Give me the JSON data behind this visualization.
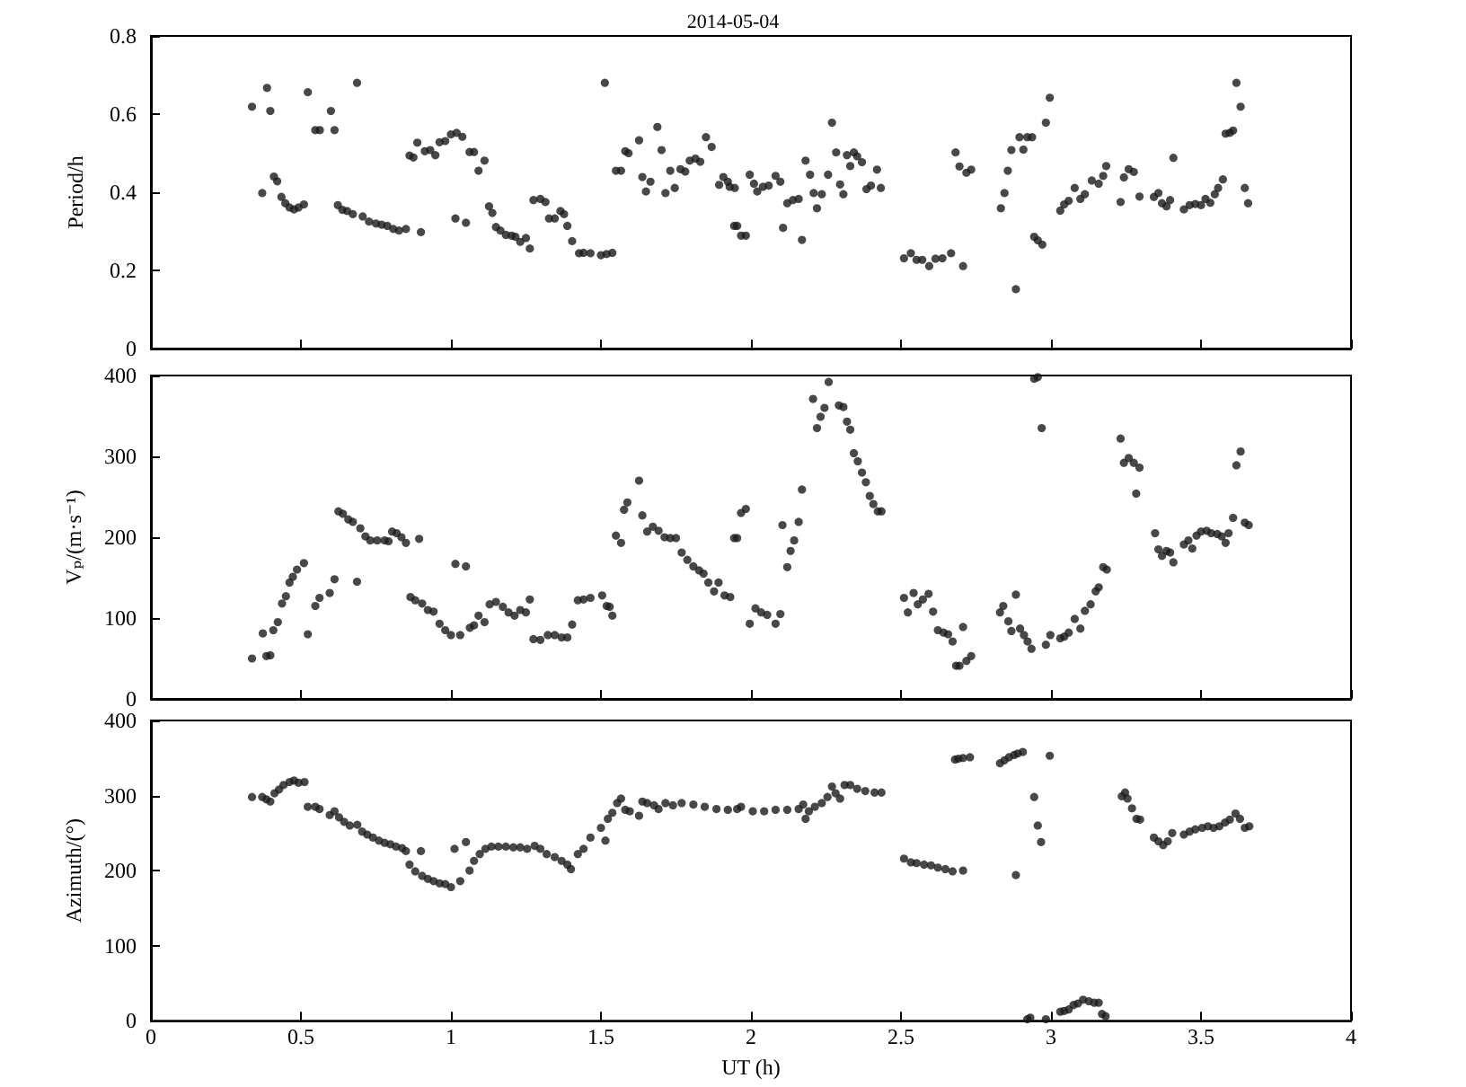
{
  "chart_data": [
    {
      "type": "scatter",
      "title": "2014-05-04",
      "ylabel": "Period/h",
      "color": "#1a1a1a",
      "marker": "circle",
      "grid": false,
      "tick_labels": "y",
      "xlim": [
        0,
        4
      ],
      "xticks": [
        0,
        0.5,
        1,
        1.5,
        2,
        2.5,
        3,
        3.5,
        4
      ],
      "ylim": [
        0,
        0.8
      ],
      "yticks": [
        0,
        0.2,
        0.4,
        0.6,
        0.8
      ],
      "x": [
        0.337,
        0.371,
        0.387,
        0.398,
        0.41,
        0.421,
        0.435,
        0.448,
        0.462,
        0.477,
        0.492,
        0.51,
        0.523,
        0.548,
        0.563,
        0.6,
        0.612,
        0.623,
        0.638,
        0.654,
        0.673,
        0.687,
        0.706,
        0.727,
        0.75,
        0.769,
        0.788,
        0.808,
        0.827,
        0.85,
        0.862,
        0.875,
        0.888,
        0.9,
        0.913,
        0.931,
        0.948,
        0.962,
        0.981,
        1.0,
        1.019,
        1.038,
        1.015,
        1.05,
        1.062,
        1.077,
        1.092,
        1.112,
        1.127,
        1.138,
        1.15,
        1.165,
        1.183,
        1.202,
        1.215,
        1.231,
        1.25,
        1.263,
        1.275,
        1.298,
        1.315,
        1.327,
        1.346,
        1.365,
        1.377,
        1.388,
        1.404,
        1.427,
        1.442,
        1.465,
        1.5,
        1.513,
        1.519,
        1.538,
        1.55,
        1.567,
        1.581,
        1.592,
        1.627,
        1.638,
        1.65,
        1.665,
        1.688,
        1.702,
        1.715,
        1.731,
        1.746,
        1.765,
        1.781,
        1.796,
        1.815,
        1.831,
        1.85,
        1.869,
        1.894,
        1.908,
        1.923,
        1.946,
        1.954,
        1.929,
        1.944,
        1.967,
        1.983,
        1.996,
        2.01,
        2.021,
        2.04,
        2.059,
        2.082,
        2.098,
        2.107,
        2.121,
        2.14,
        2.159,
        2.17,
        2.182,
        2.197,
        2.209,
        2.22,
        2.236,
        2.257,
        2.27,
        2.284,
        2.297,
        2.308,
        2.32,
        2.331,
        2.343,
        2.354,
        2.37,
        2.385,
        2.4,
        2.42,
        2.433,
        2.51,
        2.533,
        2.552,
        2.571,
        2.594,
        2.615,
        2.638,
        2.667,
        2.682,
        2.695,
        2.707,
        2.718,
        2.734,
        2.833,
        2.845,
        2.856,
        2.868,
        2.883,
        2.895,
        2.908,
        2.921,
        2.937,
        2.944,
        2.956,
        2.971,
        2.983,
        2.996,
        3.031,
        3.044,
        3.059,
        3.079,
        3.098,
        3.113,
        3.136,
        3.159,
        3.174,
        3.184,
        3.232,
        3.243,
        3.259,
        3.276,
        3.295,
        3.343,
        3.358,
        3.37,
        3.385,
        3.397,
        3.408,
        3.443,
        3.462,
        3.481,
        3.5,
        3.515,
        3.531,
        3.546,
        3.557,
        3.573,
        3.582,
        3.596,
        3.607,
        3.618,
        3.632,
        3.646,
        3.657
      ],
      "values": [
        0.619,
        0.398,
        0.667,
        0.608,
        0.44,
        0.428,
        0.388,
        0.372,
        0.361,
        0.356,
        0.361,
        0.369,
        0.656,
        0.559,
        0.559,
        0.608,
        0.559,
        0.367,
        0.355,
        0.352,
        0.344,
        0.68,
        0.338,
        0.325,
        0.32,
        0.317,
        0.314,
        0.306,
        0.302,
        0.306,
        0.494,
        0.489,
        0.527,
        0.298,
        0.505,
        0.508,
        0.495,
        0.528,
        0.531,
        0.548,
        0.552,
        0.542,
        0.333,
        0.322,
        0.503,
        0.503,
        0.455,
        0.481,
        0.364,
        0.347,
        0.311,
        0.302,
        0.291,
        0.289,
        0.286,
        0.273,
        0.283,
        0.256,
        0.38,
        0.383,
        0.375,
        0.333,
        0.333,
        0.352,
        0.344,
        0.314,
        0.275,
        0.244,
        0.245,
        0.244,
        0.239,
        0.68,
        0.242,
        0.245,
        0.455,
        0.455,
        0.505,
        0.5,
        0.533,
        0.439,
        0.402,
        0.427,
        0.567,
        0.508,
        0.398,
        0.455,
        0.411,
        0.459,
        0.453,
        0.481,
        0.486,
        0.478,
        0.541,
        0.516,
        0.419,
        0.439,
        0.427,
        0.411,
        0.314,
        0.414,
        0.314,
        0.289,
        0.289,
        0.445,
        0.422,
        0.402,
        0.414,
        0.417,
        0.442,
        0.427,
        0.309,
        0.372,
        0.38,
        0.383,
        0.278,
        0.481,
        0.445,
        0.398,
        0.359,
        0.395,
        0.445,
        0.578,
        0.502,
        0.42,
        0.395,
        0.495,
        0.467,
        0.502,
        0.492,
        0.477,
        0.408,
        0.417,
        0.458,
        0.411,
        0.231,
        0.244,
        0.227,
        0.227,
        0.211,
        0.23,
        0.231,
        0.244,
        0.502,
        0.466,
        0.211,
        0.45,
        0.458,
        0.359,
        0.398,
        0.455,
        0.508,
        0.152,
        0.541,
        0.509,
        0.541,
        0.541,
        0.286,
        0.277,
        0.266,
        0.578,
        0.642,
        0.353,
        0.369,
        0.378,
        0.411,
        0.383,
        0.395,
        0.43,
        0.422,
        0.442,
        0.467,
        0.375,
        0.438,
        0.459,
        0.452,
        0.389,
        0.388,
        0.398,
        0.372,
        0.364,
        0.38,
        0.488,
        0.356,
        0.367,
        0.37,
        0.367,
        0.383,
        0.373,
        0.395,
        0.411,
        0.433,
        0.55,
        0.552,
        0.558,
        0.68,
        0.619,
        0.411,
        0.372
      ]
    },
    {
      "type": "scatter",
      "ylabel": "Vₚ/(m·s⁻¹)",
      "color": "#1a1a1a",
      "marker": "circle",
      "grid": false,
      "tick_labels": "y",
      "xlim": [
        0,
        4
      ],
      "xticks": [
        0,
        0.5,
        1,
        1.5,
        2,
        2.5,
        3,
        3.5,
        4
      ],
      "ylim": [
        0,
        400
      ],
      "yticks": [
        0,
        100,
        200,
        300,
        400
      ],
      "x": [
        0.337,
        0.373,
        0.385,
        0.398,
        0.408,
        0.423,
        0.437,
        0.45,
        0.462,
        0.473,
        0.487,
        0.51,
        0.523,
        0.548,
        0.562,
        0.596,
        0.612,
        0.625,
        0.64,
        0.658,
        0.673,
        0.687,
        0.698,
        0.715,
        0.731,
        0.754,
        0.779,
        0.792,
        0.804,
        0.819,
        0.835,
        0.85,
        0.865,
        0.881,
        0.894,
        0.904,
        0.923,
        0.942,
        0.962,
        0.981,
        1.0,
        1.015,
        1.031,
        1.05,
        1.063,
        1.077,
        1.092,
        1.112,
        1.129,
        1.15,
        1.173,
        1.192,
        1.212,
        1.231,
        1.25,
        1.263,
        1.275,
        1.298,
        1.323,
        1.346,
        1.369,
        1.388,
        1.404,
        1.423,
        1.442,
        1.465,
        1.504,
        1.519,
        1.529,
        1.538,
        1.55,
        1.567,
        1.577,
        1.588,
        1.627,
        1.638,
        1.654,
        1.673,
        1.692,
        1.712,
        1.731,
        1.75,
        1.769,
        1.788,
        1.808,
        1.827,
        1.842,
        1.858,
        1.877,
        1.892,
        1.912,
        1.931,
        1.954,
        1.944,
        1.967,
        1.983,
        1.996,
        2.015,
        2.034,
        2.054,
        2.082,
        2.098,
        2.105,
        2.121,
        2.132,
        2.144,
        2.159,
        2.17,
        2.207,
        2.22,
        2.232,
        2.245,
        2.259,
        2.293,
        2.308,
        2.32,
        2.331,
        2.343,
        2.356,
        2.37,
        2.383,
        2.396,
        2.408,
        2.423,
        2.435,
        2.51,
        2.523,
        2.542,
        2.556,
        2.573,
        2.592,
        2.607,
        2.623,
        2.642,
        2.657,
        2.672,
        2.684,
        2.695,
        2.707,
        2.718,
        2.734,
        2.83,
        2.841,
        2.858,
        2.868,
        2.883,
        2.897,
        2.91,
        2.922,
        2.935,
        2.944,
        2.956,
        2.969,
        2.983,
        2.998,
        3.031,
        3.044,
        3.059,
        3.079,
        3.098,
        3.113,
        3.132,
        3.149,
        3.159,
        3.174,
        3.186,
        3.232,
        3.243,
        3.259,
        3.276,
        3.284,
        3.295,
        3.347,
        3.358,
        3.37,
        3.385,
        3.397,
        3.408,
        3.443,
        3.458,
        3.471,
        3.485,
        3.5,
        3.519,
        3.534,
        3.554,
        3.569,
        3.582,
        3.592,
        3.607,
        3.618,
        3.632,
        3.646,
        3.659
      ],
      "values": [
        50,
        81,
        53,
        54,
        85,
        95,
        118,
        127,
        144,
        151,
        160,
        168,
        80,
        115,
        125,
        131,
        148,
        232,
        229,
        222,
        219,
        145,
        211,
        201,
        196,
        196,
        196,
        195,
        207,
        205,
        200,
        193,
        126,
        122,
        198,
        118,
        110,
        108,
        93,
        85,
        79,
        167,
        79,
        164,
        88,
        91,
        103,
        95,
        117,
        120,
        114,
        107,
        103,
        110,
        107,
        123,
        74,
        73,
        79,
        79,
        76,
        76,
        92,
        122,
        123,
        125,
        128,
        115,
        114,
        103,
        202,
        193,
        234,
        243,
        270,
        227,
        207,
        213,
        208,
        200,
        199,
        199,
        181,
        172,
        164,
        159,
        155,
        144,
        133,
        144,
        128,
        126,
        199,
        199,
        230,
        235,
        93,
        112,
        107,
        104,
        93,
        105,
        215,
        163,
        183,
        196,
        219,
        259,
        371,
        335,
        349,
        360,
        392,
        363,
        361,
        343,
        333,
        304,
        294,
        280,
        268,
        251,
        241,
        232,
        232,
        125,
        107,
        131,
        117,
        123,
        130,
        108,
        85,
        82,
        80,
        71,
        41,
        41,
        89,
        47,
        53,
        107,
        115,
        96,
        84,
        129,
        87,
        79,
        71,
        62,
        396,
        398,
        335,
        67,
        79,
        75,
        77,
        82,
        99,
        87,
        109,
        117,
        133,
        138,
        163,
        160,
        322,
        292,
        298,
        292,
        254,
        286,
        205,
        185,
        177,
        183,
        181,
        169,
        191,
        196,
        186,
        202,
        207,
        208,
        205,
        204,
        201,
        193,
        205,
        224,
        289,
        306,
        218,
        215
      ]
    },
    {
      "type": "scatter",
      "xlabel": "UT (h)",
      "ylabel": "Azimuth/(°)",
      "color": "#1a1a1a",
      "marker": "circle",
      "grid": false,
      "xlim": [
        0,
        4
      ],
      "xticks": [
        0,
        0.5,
        1,
        1.5,
        2,
        2.5,
        3,
        3.5,
        4
      ],
      "ylim": [
        0,
        400
      ],
      "yticks": [
        0,
        100,
        200,
        300,
        400
      ],
      "x": [
        0.337,
        0.371,
        0.385,
        0.398,
        0.412,
        0.427,
        0.442,
        0.462,
        0.477,
        0.492,
        0.512,
        0.523,
        0.548,
        0.562,
        0.596,
        0.612,
        0.627,
        0.644,
        0.663,
        0.688,
        0.704,
        0.721,
        0.74,
        0.76,
        0.779,
        0.798,
        0.817,
        0.837,
        0.85,
        0.862,
        0.881,
        0.9,
        0.904,
        0.923,
        0.942,
        0.962,
        0.981,
        1.0,
        1.012,
        1.031,
        1.05,
        1.062,
        1.077,
        1.096,
        1.115,
        1.135,
        1.158,
        1.183,
        1.208,
        1.231,
        1.254,
        1.279,
        1.298,
        1.319,
        1.346,
        1.369,
        1.388,
        1.4,
        1.423,
        1.442,
        1.465,
        1.5,
        1.515,
        1.523,
        1.538,
        1.554,
        1.567,
        1.581,
        1.596,
        1.627,
        1.638,
        1.654,
        1.677,
        1.692,
        1.715,
        1.74,
        1.769,
        1.808,
        1.846,
        1.885,
        1.923,
        1.954,
        1.967,
        2.006,
        2.044,
        2.082,
        2.121,
        2.159,
        2.174,
        2.182,
        2.193,
        2.213,
        2.236,
        2.255,
        2.27,
        2.282,
        2.297,
        2.312,
        2.331,
        2.354,
        2.381,
        2.412,
        2.435,
        2.51,
        2.533,
        2.552,
        2.577,
        2.6,
        2.623,
        2.648,
        2.672,
        2.707,
        2.68,
        2.691,
        2.707,
        2.73,
        2.83,
        2.845,
        2.86,
        2.877,
        2.889,
        2.906,
        2.883,
        2.921,
        2.931,
        2.944,
        2.956,
        2.967,
        2.983,
        2.996,
        3.031,
        3.044,
        3.059,
        3.075,
        3.09,
        3.107,
        3.126,
        3.144,
        3.159,
        3.17,
        3.182,
        3.236,
        3.247,
        3.255,
        3.27,
        3.285,
        3.297,
        3.343,
        3.358,
        3.374,
        3.389,
        3.404,
        3.443,
        3.462,
        3.481,
        3.504,
        3.523,
        3.542,
        3.561,
        3.58,
        3.596,
        3.615,
        3.63,
        3.646,
        3.661
      ],
      "values": [
        298,
        298,
        295,
        292,
        303,
        308,
        314,
        318,
        320,
        317,
        318,
        285,
        285,
        282,
        274,
        279,
        271,
        265,
        260,
        261,
        252,
        248,
        244,
        240,
        237,
        235,
        232,
        230,
        226,
        208,
        199,
        226,
        193,
        189,
        186,
        183,
        182,
        178,
        229,
        186,
        238,
        200,
        213,
        222,
        229,
        232,
        232,
        232,
        231,
        231,
        229,
        233,
        229,
        222,
        218,
        213,
        208,
        202,
        222,
        229,
        244,
        257,
        240,
        269,
        277,
        290,
        296,
        281,
        279,
        273,
        292,
        290,
        287,
        282,
        290,
        287,
        290,
        288,
        285,
        282,
        281,
        282,
        285,
        279,
        279,
        281,
        281,
        282,
        288,
        269,
        279,
        285,
        290,
        298,
        312,
        303,
        296,
        314,
        314,
        309,
        306,
        304,
        304,
        216,
        211,
        210,
        208,
        207,
        204,
        202,
        199,
        200,
        348,
        349,
        350,
        351,
        343,
        347,
        351,
        354,
        356,
        358,
        194,
        2,
        4,
        298,
        260,
        238,
        2,
        353,
        12,
        13,
        15,
        21,
        23,
        28,
        26,
        24,
        24,
        9,
        6,
        299,
        304,
        296,
        283,
        269,
        268,
        244,
        239,
        234,
        239,
        250,
        248,
        252,
        255,
        257,
        259,
        257,
        259,
        264,
        268,
        276,
        269,
        257,
        259
      ]
    }
  ]
}
